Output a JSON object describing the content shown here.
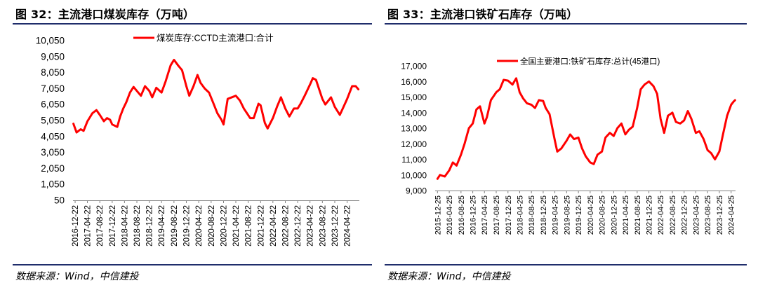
{
  "charts": {
    "left": {
      "figure_title": "图 32：主流港口煤炭库存（万吨）",
      "source": "数据来源：Wind，中信建投",
      "line_color": "#ff0000",
      "chart_data": {
        "type": "line",
        "title": "",
        "xlabel": "",
        "ylabel": "",
        "ylim": [
          50,
          10050
        ],
        "y_ticks": [
          50,
          1050,
          2050,
          3050,
          4050,
          5050,
          6050,
          7050,
          8050,
          9050,
          10050
        ],
        "y_tick_labels": [
          "50",
          "1,050",
          "2,050",
          "3,050",
          "4,050",
          "5,050",
          "6,050",
          "7,050",
          "8,050",
          "9,050",
          "10,050"
        ],
        "x_ticks": [
          "2016-12-22",
          "2017-04-22",
          "2017-08-22",
          "2017-12-22",
          "2018-04-22",
          "2018-08-22",
          "2018-12-22",
          "2019-04-22",
          "2019-08-22",
          "2019-12-22",
          "2020-04-22",
          "2020-08-22",
          "2020-12-22",
          "2021-04-22",
          "2021-08-22",
          "2021-12-22",
          "2022-04-22",
          "2022-08-22",
          "2022-12-22",
          "2023-04-22",
          "2023-08-22",
          "2023-12-22",
          "2024-04-22"
        ],
        "x_range": [
          "2016-12-01",
          "2024-08-20"
        ],
        "legend": "top-center",
        "series": [
          {
            "name": "煤炭库存:CCTD主流港口:合计",
            "points": [
              [
                "2016-12-05",
                4850
              ],
              [
                "2017-01-05",
                4300
              ],
              [
                "2017-02-15",
                4500
              ],
              [
                "2017-03-15",
                4400
              ],
              [
                "2017-04-22",
                5000
              ],
              [
                "2017-06-10",
                5500
              ],
              [
                "2017-07-20",
                5700
              ],
              [
                "2017-08-22",
                5400
              ],
              [
                "2017-10-01",
                5000
              ],
              [
                "2017-11-01",
                5200
              ],
              [
                "2017-12-01",
                5100
              ],
              [
                "2017-12-22",
                4800
              ],
              [
                "2018-02-10",
                4650
              ],
              [
                "2018-03-10",
                5300
              ],
              [
                "2018-04-10",
                5800
              ],
              [
                "2018-05-10",
                6200
              ],
              [
                "2018-06-15",
                6800
              ],
              [
                "2018-07-20",
                7150
              ],
              [
                "2018-08-22",
                6900
              ],
              [
                "2018-10-01",
                6600
              ],
              [
                "2018-11-10",
                7200
              ],
              [
                "2018-12-22",
                6900
              ],
              [
                "2019-01-20",
                6500
              ],
              [
                "2019-03-01",
                7100
              ],
              [
                "2019-04-22",
                6800
              ],
              [
                "2019-06-01",
                7500
              ],
              [
                "2019-07-20",
                8500
              ],
              [
                "2019-08-22",
                8850
              ],
              [
                "2019-10-01",
                8500
              ],
              [
                "2019-11-10",
                8200
              ],
              [
                "2019-12-22",
                7200
              ],
              [
                "2020-01-20",
                6600
              ],
              [
                "2020-03-01",
                7200
              ],
              [
                "2020-04-10",
                7900
              ],
              [
                "2020-05-10",
                7400
              ],
              [
                "2020-06-20",
                7050
              ],
              [
                "2020-08-01",
                6800
              ],
              [
                "2020-09-15",
                6100
              ],
              [
                "2020-10-22",
                5500
              ],
              [
                "2020-12-01",
                5100
              ],
              [
                "2020-12-22",
                4800
              ],
              [
                "2021-02-01",
                6400
              ],
              [
                "2021-04-22",
                6600
              ],
              [
                "2021-06-01",
                6300
              ],
              [
                "2021-07-10",
                5800
              ],
              [
                "2021-08-10",
                5500
              ],
              [
                "2021-09-10",
                5200
              ],
              [
                "2021-10-15",
                5200
              ],
              [
                "2021-12-01",
                6100
              ],
              [
                "2021-12-22",
                6000
              ],
              [
                "2022-02-01",
                4900
              ],
              [
                "2022-03-01",
                4550
              ],
              [
                "2022-04-22",
                5200
              ],
              [
                "2022-06-01",
                5900
              ],
              [
                "2022-07-10",
                6500
              ],
              [
                "2022-08-22",
                5800
              ],
              [
                "2022-10-01",
                5300
              ],
              [
                "2022-11-15",
                5800
              ],
              [
                "2022-12-22",
                5800
              ],
              [
                "2023-01-20",
                6100
              ],
              [
                "2023-03-01",
                6600
              ],
              [
                "2023-04-22",
                7300
              ],
              [
                "2023-05-20",
                7700
              ],
              [
                "2023-06-20",
                7600
              ],
              [
                "2023-08-22",
                6400
              ],
              [
                "2023-09-20",
                6050
              ],
              [
                "2023-11-15",
                6500
              ],
              [
                "2023-12-22",
                5900
              ],
              [
                "2024-02-10",
                5400
              ],
              [
                "2024-03-10",
                5800
              ],
              [
                "2024-04-22",
                6400
              ],
              [
                "2024-06-10",
                7200
              ],
              [
                "2024-07-15",
                7200
              ],
              [
                "2024-08-10",
                7000
              ]
            ]
          }
        ]
      }
    },
    "right": {
      "figure_title": "图 33：主流港口铁矿石库存（万吨）",
      "source": "数据来源：Wind，中信建投",
      "line_color": "#ff0000",
      "chart_data": {
        "type": "line",
        "title": "",
        "xlabel": "",
        "ylabel": "",
        "ylim": [
          9000,
          17000
        ],
        "y_ticks": [
          9000,
          10000,
          11000,
          12000,
          13000,
          14000,
          15000,
          16000,
          17000
        ],
        "y_tick_labels": [
          "9,000",
          "10,000",
          "11,000",
          "12,000",
          "13,000",
          "14,000",
          "15,000",
          "16,000",
          "17,000"
        ],
        "x_ticks": [
          "2015-12-25",
          "2016-04-25",
          "2016-08-25",
          "2016-12-25",
          "2017-04-25",
          "2017-08-25",
          "2017-12-25",
          "2018-04-25",
          "2018-08-25",
          "2018-12-25",
          "2019-04-25",
          "2019-08-25",
          "2019-12-25",
          "2020-04-25",
          "2020-08-25",
          "2020-12-25",
          "2021-04-25",
          "2021-08-25",
          "2021-12-25",
          "2022-04-25",
          "2022-08-25",
          "2022-12-25",
          "2023-04-25",
          "2023-08-25",
          "2023-12-25",
          "2024-04-25"
        ],
        "x_range": [
          "2015-12-01",
          "2024-06-10"
        ],
        "legend": "top-center",
        "series": [
          {
            "name": "全国主要港口:铁矿石库存:总计(45港口)",
            "points": [
              [
                "2015-12-25",
                9750
              ],
              [
                "2016-01-20",
                10000
              ],
              [
                "2016-03-10",
                9900
              ],
              [
                "2016-04-25",
                10300
              ],
              [
                "2016-06-01",
                10800
              ],
              [
                "2016-07-10",
                10600
              ],
              [
                "2016-08-25",
                11300
              ],
              [
                "2016-10-01",
                12000
              ],
              [
                "2016-11-15",
                13000
              ],
              [
                "2016-12-25",
                13300
              ],
              [
                "2017-02-01",
                14200
              ],
              [
                "2017-03-10",
                14400
              ],
              [
                "2017-04-25",
                13300
              ],
              [
                "2017-05-20",
                13700
              ],
              [
                "2017-07-01",
                14800
              ],
              [
                "2017-08-25",
                15300
              ],
              [
                "2017-10-01",
                15500
              ],
              [
                "2017-11-10",
                16100
              ],
              [
                "2017-12-25",
                16050
              ],
              [
                "2018-02-10",
                15800
              ],
              [
                "2018-03-20",
                16200
              ],
              [
                "2018-04-25",
                15300
              ],
              [
                "2018-06-01",
                14900
              ],
              [
                "2018-07-10",
                14600
              ],
              [
                "2018-08-25",
                14500
              ],
              [
                "2018-10-01",
                14300
              ],
              [
                "2018-11-10",
                14800
              ],
              [
                "2018-12-25",
                14750
              ],
              [
                "2019-01-20",
                14300
              ],
              [
                "2019-03-01",
                13900
              ],
              [
                "2019-04-25",
                12200
              ],
              [
                "2019-05-20",
                11500
              ],
              [
                "2019-07-01",
                11700
              ],
              [
                "2019-08-25",
                12200
              ],
              [
                "2019-10-01",
                12600
              ],
              [
                "2019-11-10",
                12300
              ],
              [
                "2019-12-25",
                12400
              ],
              [
                "2020-02-01",
                11700
              ],
              [
                "2020-03-10",
                11200
              ],
              [
                "2020-04-25",
                10800
              ],
              [
                "2020-06-01",
                10700
              ],
              [
                "2020-07-10",
                11300
              ],
              [
                "2020-08-25",
                11500
              ],
              [
                "2020-10-01",
                12400
              ],
              [
                "2020-11-15",
                12700
              ],
              [
                "2020-12-25",
                12500
              ],
              [
                "2021-02-01",
                13000
              ],
              [
                "2021-03-15",
                13300
              ],
              [
                "2021-04-25",
                12600
              ],
              [
                "2021-06-01",
                12900
              ],
              [
                "2021-07-10",
                13100
              ],
              [
                "2021-08-25",
                14300
              ],
              [
                "2021-10-01",
                15500
              ],
              [
                "2021-11-10",
                15800
              ],
              [
                "2021-12-25",
                16000
              ],
              [
                "2022-02-10",
                15700
              ],
              [
                "2022-03-20",
                15200
              ],
              [
                "2022-04-25",
                13600
              ],
              [
                "2022-06-01",
                12700
              ],
              [
                "2022-07-10",
                13800
              ],
              [
                "2022-08-25",
                14000
              ],
              [
                "2022-10-01",
                13400
              ],
              [
                "2022-11-15",
                13300
              ],
              [
                "2022-12-25",
                13500
              ],
              [
                "2023-02-01",
                14100
              ],
              [
                "2023-03-10",
                13600
              ],
              [
                "2023-04-25",
                12700
              ],
              [
                "2023-06-01",
                12800
              ],
              [
                "2023-07-15",
                12300
              ],
              [
                "2023-08-25",
                11600
              ],
              [
                "2023-10-01",
                11400
              ],
              [
                "2023-11-10",
                11000
              ],
              [
                "2023-12-25",
                11500
              ],
              [
                "2024-02-01",
                12600
              ],
              [
                "2024-03-15",
                13800
              ],
              [
                "2024-04-25",
                14500
              ],
              [
                "2024-05-20",
                14700
              ],
              [
                "2024-06-05",
                14800
              ]
            ]
          }
        ]
      }
    }
  }
}
